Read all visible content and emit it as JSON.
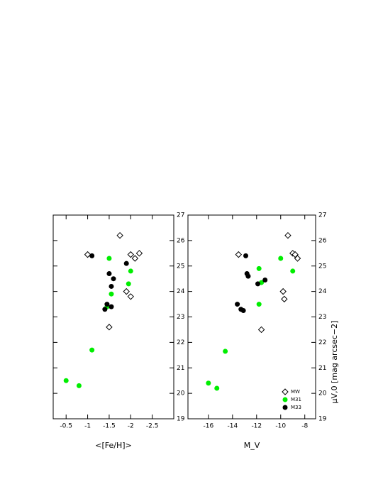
{
  "chart_data": [
    {
      "type": "scatter",
      "y_label": "<[Fe/H]>",
      "xlim": [
        19,
        27
      ],
      "xticks": [
        19,
        20,
        21,
        22,
        23,
        24,
        25,
        26,
        27
      ],
      "ylim": [
        -0.2,
        -3.0
      ],
      "yticks": [
        -0.5,
        -1,
        -1.5,
        -2,
        -2.5
      ],
      "series": [
        {
          "marker": "open",
          "color": "#000000",
          "x": [
            26.2,
            25.45,
            25.3,
            25.5,
            24.0,
            23.8,
            22.6,
            25.45
          ],
          "values": [
            -1.75,
            -2.0,
            -2.1,
            -2.2,
            -1.9,
            -2.0,
            -1.5,
            -1.0
          ]
        },
        {
          "marker": "filled",
          "color": "#00ee00",
          "x": [
            20.5,
            20.3,
            21.7,
            25.3,
            24.8,
            24.3,
            23.9,
            23.4
          ],
          "values": [
            -0.5,
            -0.8,
            -1.1,
            -1.5,
            -2.0,
            -1.95,
            -1.55,
            -1.45
          ]
        },
        {
          "marker": "filled",
          "color": "#000000",
          "x": [
            25.4,
            25.1,
            24.7,
            24.5,
            24.2,
            23.4,
            23.3,
            23.5
          ],
          "values": [
            -1.1,
            -1.9,
            -1.5,
            -1.6,
            -1.55,
            -1.55,
            -1.4,
            -1.45
          ]
        }
      ]
    },
    {
      "type": "scatter",
      "y_label": "M_V",
      "x_label": "μV,0 [mag arcsec−2]",
      "xlim": [
        19,
        27
      ],
      "xticks": [
        19,
        20,
        21,
        22,
        23,
        24,
        25,
        26,
        27
      ],
      "ylim": [
        -17.7,
        -7.1
      ],
      "yticks": [
        -16,
        -14,
        -12,
        -10,
        -8
      ],
      "series": [
        {
          "name": "MW",
          "marker": "open",
          "color": "#000000",
          "x": [
            26.2,
            25.5,
            25.3,
            25.45,
            24.0,
            23.7,
            22.5,
            25.45
          ],
          "values": [
            -9.4,
            -9.0,
            -8.6,
            -8.8,
            -9.8,
            -9.7,
            -11.6,
            -13.5
          ]
        },
        {
          "name": "M31",
          "marker": "filled",
          "color": "#00ee00",
          "x": [
            20.4,
            20.2,
            21.65,
            23.5,
            24.9,
            24.35,
            25.3,
            24.8
          ],
          "values": [
            -16.0,
            -15.3,
            -14.6,
            -11.8,
            -11.8,
            -11.6,
            -10.0,
            -9.0
          ]
        },
        {
          "name": "M33",
          "marker": "filled",
          "color": "#000000",
          "x": [
            25.4,
            24.7,
            24.6,
            24.3,
            24.45,
            23.5,
            23.3,
            23.25
          ],
          "values": [
            -12.9,
            -12.8,
            -12.7,
            -11.9,
            -11.3,
            -13.6,
            -13.3,
            -13.1
          ]
        }
      ]
    }
  ]
}
